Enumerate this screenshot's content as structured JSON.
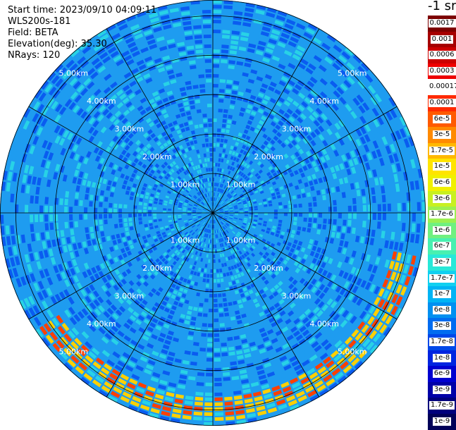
{
  "header": {
    "start_time": "Start time: 2023/09/10 04:09:11",
    "station": "WLS200s-181",
    "field": "Field: BETA",
    "elevation": "Elevation(deg): 35.30",
    "nrays": "NRays: 120"
  },
  "ppi": {
    "range_rings_km": [
      1,
      2,
      3,
      4,
      5
    ],
    "ring_label_text": [
      "1.00km",
      "2.00km",
      "3.00km",
      "4.00km",
      "5.00km"
    ],
    "max_range_km": 5.4,
    "nrays": 120,
    "colors": {
      "low": "#0a5cf0",
      "mid": "#1e9cf0",
      "high": "#28d2e6",
      "ring_warm": "#ffd000",
      "ring_hot": "#ff4000"
    }
  },
  "colorbar": {
    "unit_label": "-1 sr",
    "ticks": [
      {
        "label": "0.0017",
        "color": "#7d0000",
        "label_bg": "#ffffff"
      },
      {
        "label": "0.001",
        "color": "#a60000",
        "label_bg": "#ffffff"
      },
      {
        "label": "0.0006",
        "color": "#cc0000",
        "label_bg": "#ffffff"
      },
      {
        "label": "0.0003",
        "color": "#ee0000",
        "label_bg": "#ffffff"
      },
      {
        "label": "0.00017",
        "color": "#ffffff",
        "label_bg": "#ffffff"
      },
      {
        "label": "0.0001",
        "color": "#ff2a00",
        "label_bg": "#ffffff"
      },
      {
        "label": "6e-5",
        "color": "#ff5a00",
        "label_bg": "#ffffff"
      },
      {
        "label": "3e-5",
        "color": "#ff8a00",
        "label_bg": "#ffffff"
      },
      {
        "label": "1.7e-5",
        "color": "#ffb800",
        "label_bg": "#ffffff"
      },
      {
        "label": "1e-5",
        "color": "#ffe400",
        "label_bg": "#ffffff"
      },
      {
        "label": "6e-6",
        "color": "#f0f000",
        "label_bg": "#ffffff"
      },
      {
        "label": "3e-6",
        "color": "#c8f020",
        "label_bg": "#ffffff"
      },
      {
        "label": "1.7e-6",
        "color": "#9cf050",
        "label_bg": "#ffffff"
      },
      {
        "label": "1e-6",
        "color": "#70f080",
        "label_bg": "#ffffff"
      },
      {
        "label": "6e-7",
        "color": "#48f0b0",
        "label_bg": "#ffffff"
      },
      {
        "label": "3e-7",
        "color": "#28e8d8",
        "label_bg": "#ffffff"
      },
      {
        "label": "1.7e-7",
        "color": "#10d0f0",
        "label_bg": "#ffffff"
      },
      {
        "label": "1e-7",
        "color": "#00b4f4",
        "label_bg": "#ffffff"
      },
      {
        "label": "6e-8",
        "color": "#0090f0",
        "label_bg": "#ffffff"
      },
      {
        "label": "3e-8",
        "color": "#006cf0",
        "label_bg": "#ffffff"
      },
      {
        "label": "1.7e-8",
        "color": "#0048e8",
        "label_bg": "#ffffff"
      },
      {
        "label": "1e-8",
        "color": "#0024e0",
        "label_bg": "#ffffff"
      },
      {
        "label": "6e-9",
        "color": "#0000d0",
        "label_bg": "#ffffff"
      },
      {
        "label": "3e-9",
        "color": "#0000a8",
        "label_bg": "#ffffff"
      },
      {
        "label": "1.7e-9",
        "color": "#00007c",
        "label_bg": "#ffffff"
      },
      {
        "label": "1e-9",
        "color": "#000058",
        "label_bg": "#ffffff"
      }
    ]
  }
}
